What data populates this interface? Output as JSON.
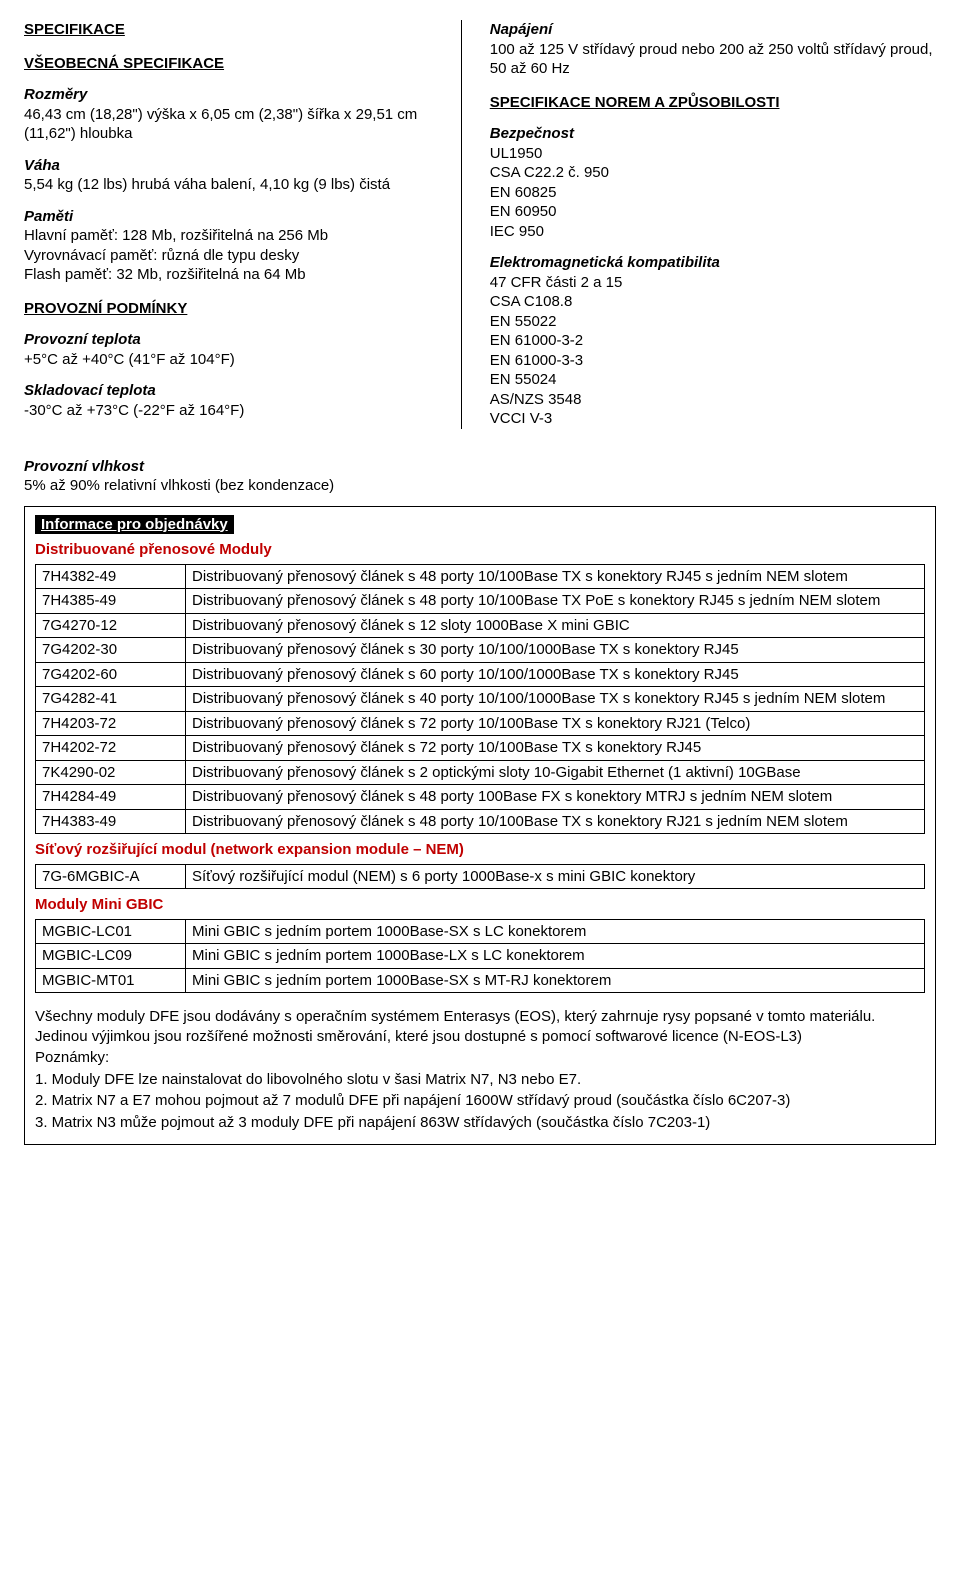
{
  "left": {
    "title": "SPECIFIKACE",
    "subtitle": "VŠEOBECNÁ SPECIFIKACE",
    "rozmery_h": "Rozměry",
    "rozmery_v": "46,43 cm (18,28\") výška x 6,05 cm (2,38\") šířka x 29,51 cm (11,62\") hloubka",
    "vaha_h": "Váha",
    "vaha_v": "5,54 kg (12 lbs) hrubá váha balení, 4,10 kg (9 lbs) čistá",
    "pameti_h": "Paměti",
    "pameti_v1": "Hlavní paměť: 128 Mb, rozšiřitelná na 256 Mb",
    "pameti_v2": "Vyrovnávací paměť: různá dle typu desky",
    "pameti_v3": "Flash paměť: 32 Mb, rozšiřitelná na 64 Mb",
    "provozni_h": "PROVOZNÍ PODMÍNKY",
    "pt_h": "Provozní teplota",
    "pt_v": "+5°C až +40°C (41°F až 104°F)",
    "st_h": "Skladovací teplota",
    "st_v": " -30°C až +73°C (-22°F až 164°F)",
    "pv_h": "Provozní vlhkost",
    "pv_v": "5% až 90% relativní vlhkosti (bez kondenzace)"
  },
  "right": {
    "nap_h": "Napájení",
    "nap_v": "100 až 125 V střídavý proud nebo 200 až 250 voltů střídavý proud, 50 až 60 Hz",
    "norms_h": "SPECIFIKACE NOREM A ZPŮSOBILOSTI",
    "bez_h": "Bezpečnost",
    "bez_lines": [
      "UL1950",
      "CSA C22.2 č. 950",
      "EN 60825",
      "EN 60950",
      "IEC 950"
    ],
    "emc_h": "Elektromagnetická kompatibilita",
    "emc_lines": [
      "47 CFR části 2 a 15",
      "CSA C108.8",
      "EN 55022",
      "EN 61000-3-2",
      "EN 61000-3-3",
      "EN 55024",
      "AS/NZS 3548",
      "VCCI V-3"
    ]
  },
  "info": {
    "box_title": "Informace pro objednávky",
    "g1_h": "Distribuované přenosové Moduly",
    "g1_rows": [
      [
        "7H4382-49",
        "Distribuovaný přenosový článek s 48 porty 10/100Base TX s konektory RJ45 s jedním NEM slotem"
      ],
      [
        "7H4385-49",
        "Distribuovaný přenosový článek s 48 porty 10/100Base TX PoE s konektory RJ45 s jedním NEM slotem"
      ],
      [
        "7G4270-12",
        "Distribuovaný přenosový článek s 12 sloty 1000Base X mini GBIC"
      ],
      [
        "7G4202-30",
        "Distribuovaný přenosový článek s 30 porty 10/100/1000Base TX s konektory RJ45"
      ],
      [
        "7G4202-60",
        "Distribuovaný přenosový článek s 60 porty 10/100/1000Base TX s konektory RJ45"
      ],
      [
        "7G4282-41",
        "Distribuovaný přenosový článek s 40 porty 10/100/1000Base TX s konektory RJ45 s jedním NEM slotem"
      ],
      [
        "7H4203-72",
        "Distribuovaný přenosový článek s 72 porty 10/100Base TX s konektory RJ21 (Telco)"
      ],
      [
        "7H4202-72",
        "Distribuovaný přenosový článek s 72 porty 10/100Base TX s konektory RJ45"
      ],
      [
        "7K4290-02",
        "Distribuovaný přenosový článek s 2 optickými sloty 10-Gigabit Ethernet (1 aktivní) 10GBase"
      ],
      [
        "7H4284-49",
        "Distribuovaný přenosový článek s 48 porty 100Base FX s konektory MTRJ s jedním NEM slotem"
      ],
      [
        "7H4383-49",
        "Distribuovaný přenosový článek s 48 porty 10/100Base TX s konektory RJ21 s jedním NEM slotem"
      ]
    ],
    "g2_h": "Síťový rozšiřující modul (network expansion module – NEM)",
    "g2_rows": [
      [
        "7G-6MGBIC-A",
        "Síťový rozšiřující modul (NEM) s 6 porty 1000Base-x s mini GBIC konektory"
      ]
    ],
    "g3_h": "Moduly Mini GBIC",
    "g3_rows": [
      [
        "MGBIC-LC01",
        "Mini GBIC s jedním portem 1000Base-SX s LC konektorem"
      ],
      [
        "MGBIC-LC09",
        "Mini GBIC s jedním portem 1000Base-LX s LC konektorem"
      ],
      [
        "MGBIC-MT01",
        "Mini GBIC s jedním portem 1000Base-SX s MT-RJ konektorem"
      ]
    ],
    "foot1": "Všechny moduly DFE jsou dodávány s operačním systémem Enterasys (EOS), který zahrnuje rysy popsané v tomto materiálu. Jedinou výjimkou jsou rozšířené možnosti směrování, které jsou dostupné s pomocí softwarové licence (N-EOS-L3)",
    "notes_h": "Poznámky:",
    "notes": [
      "1. Moduly DFE lze nainstalovat do libovolného slotu v šasi Matrix N7, N3 nebo E7.",
      "2. Matrix N7 a E7 mohou pojmout až 7 modulů DFE při napájení 1600W střídavý proud (součástka číslo 6C207-3)",
      "3. Matrix N3 může pojmout až 3 moduly DFE při napájení 863W střídavých (součástka číslo 7C203-1)"
    ]
  }
}
